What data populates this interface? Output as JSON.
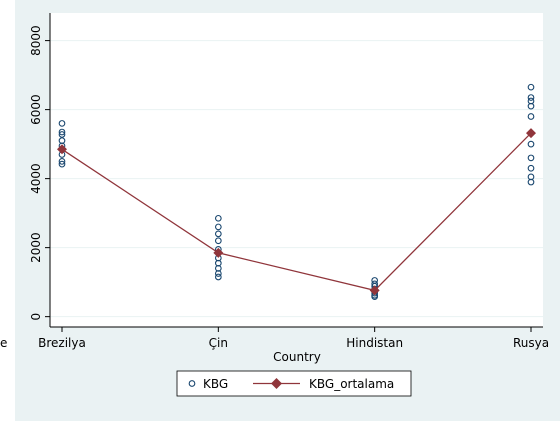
{
  "chart_data": {
    "type": "scatter",
    "title": "",
    "xlabel": "Country",
    "ylabel": "",
    "categories": [
      "Brezilya",
      "Çin",
      "Hindistan",
      "Rusya"
    ],
    "ylim": [
      -300,
      8800
    ],
    "yticks": [
      0,
      2000,
      4000,
      6000,
      8000
    ],
    "grid": true,
    "legend_position": "bottom",
    "series": [
      {
        "name": "KBG",
        "kind": "scatter",
        "marker": "hollow-circle",
        "color": "#1a476f",
        "points": [
          {
            "x": "Brezilya",
            "y": 5600
          },
          {
            "x": "Brezilya",
            "y": 5350
          },
          {
            "x": "Brezilya",
            "y": 5280
          },
          {
            "x": "Brezilya",
            "y": 5100
          },
          {
            "x": "Brezilya",
            "y": 4950
          },
          {
            "x": "Brezilya",
            "y": 4850
          },
          {
            "x": "Brezilya",
            "y": 4700
          },
          {
            "x": "Brezilya",
            "y": 4500
          },
          {
            "x": "Brezilya",
            "y": 4420
          },
          {
            "x": "Çin",
            "y": 2850
          },
          {
            "x": "Çin",
            "y": 2600
          },
          {
            "x": "Çin",
            "y": 2400
          },
          {
            "x": "Çin",
            "y": 2200
          },
          {
            "x": "Çin",
            "y": 1950
          },
          {
            "x": "Çin",
            "y": 1850
          },
          {
            "x": "Çin",
            "y": 1700
          },
          {
            "x": "Çin",
            "y": 1550
          },
          {
            "x": "Çin",
            "y": 1400
          },
          {
            "x": "Çin",
            "y": 1250
          },
          {
            "x": "Çin",
            "y": 1150
          },
          {
            "x": "Hindistan",
            "y": 1050
          },
          {
            "x": "Hindistan",
            "y": 950
          },
          {
            "x": "Hindistan",
            "y": 880
          },
          {
            "x": "Hindistan",
            "y": 800
          },
          {
            "x": "Hindistan",
            "y": 730
          },
          {
            "x": "Hindistan",
            "y": 680
          },
          {
            "x": "Hindistan",
            "y": 620
          },
          {
            "x": "Hindistan",
            "y": 580
          },
          {
            "x": "Rusya",
            "y": 6650
          },
          {
            "x": "Rusya",
            "y": 6350
          },
          {
            "x": "Rusya",
            "y": 6250
          },
          {
            "x": "Rusya",
            "y": 6100
          },
          {
            "x": "Rusya",
            "y": 5800
          },
          {
            "x": "Rusya",
            "y": 5000
          },
          {
            "x": "Rusya",
            "y": 4600
          },
          {
            "x": "Rusya",
            "y": 4300
          },
          {
            "x": "Rusya",
            "y": 4050
          },
          {
            "x": "Rusya",
            "y": 3900
          }
        ]
      },
      {
        "name": "KBG_ortalama",
        "kind": "line",
        "marker": "filled-diamond",
        "color": "#90353b",
        "points": [
          {
            "x": "Brezilya",
            "y": 4850
          },
          {
            "x": "Çin",
            "y": 1850
          },
          {
            "x": "Hindistan",
            "y": 760
          },
          {
            "x": "Rusya",
            "y": 5320
          }
        ]
      }
    ]
  },
  "cropped_edge_text": "e"
}
